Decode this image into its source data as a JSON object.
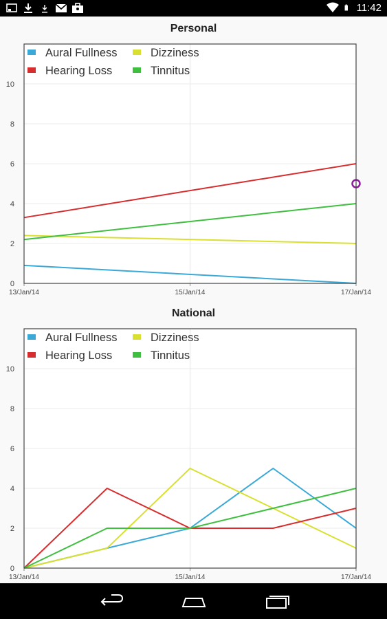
{
  "status_bar": {
    "time": "11:42",
    "icons": [
      "screenshot-icon",
      "download-icon",
      "download-icon",
      "gmail-icon",
      "briefcase-icon",
      "wifi-icon",
      "battery-icon"
    ]
  },
  "legend_items": [
    {
      "name": "Aural Fullness",
      "color": "#3aa9d8"
    },
    {
      "name": "Dizziness",
      "color": "#d9e02f"
    },
    {
      "name": "Hearing Loss",
      "color": "#d62e2e"
    },
    {
      "name": "Tinnitus",
      "color": "#3fbf3f"
    }
  ],
  "chart_data": [
    {
      "type": "line",
      "title": "Personal",
      "x_ticks": [
        "13/Jan/14",
        "15/Jan/14",
        "17/Jan/14"
      ],
      "y_ticks": [
        "0",
        "2",
        "4",
        "6",
        "8",
        "10"
      ],
      "ylim": [
        0,
        12
      ],
      "xlim": [
        "13/Jan/14",
        "17/Jan/14"
      ],
      "grid": true,
      "legend": "top-left",
      "series": [
        {
          "name": "Aural Fullness",
          "color": "#3aa9d8",
          "points": [
            [
              "13/Jan/14",
              0.9
            ],
            [
              "17/Jan/14",
              0
            ]
          ]
        },
        {
          "name": "Dizziness",
          "color": "#d9e02f",
          "points": [
            [
              "13/Jan/14",
              2.4
            ],
            [
              "17/Jan/14",
              2.0
            ]
          ]
        },
        {
          "name": "Hearing Loss",
          "color": "#d62e2e",
          "points": [
            [
              "13/Jan/14",
              3.3
            ],
            [
              "17/Jan/14",
              6.0
            ]
          ]
        },
        {
          "name": "Tinnitus",
          "color": "#3fbf3f",
          "points": [
            [
              "13/Jan/14",
              2.2
            ],
            [
              "17/Jan/14",
              4.0
            ]
          ]
        }
      ],
      "marker": {
        "date": "17/Jan/14",
        "value": 5.0,
        "color": "#8e1a9e"
      }
    },
    {
      "type": "line",
      "title": "National",
      "x_ticks": [
        "13/Jan/14",
        "15/Jan/14",
        "17/Jan/14"
      ],
      "y_ticks": [
        "0",
        "2",
        "4",
        "6",
        "8",
        "10"
      ],
      "ylim": [
        0,
        12
      ],
      "xlim": [
        "13/Jan/14",
        "17/Jan/14"
      ],
      "grid": true,
      "legend": "top-left",
      "series": [
        {
          "name": "Aural Fullness",
          "color": "#3aa9d8",
          "points": [
            [
              "13/Jan/14",
              0
            ],
            [
              "14/Jan/14",
              1
            ],
            [
              "15/Jan/14",
              2
            ],
            [
              "16/Jan/14",
              5
            ],
            [
              "17/Jan/14",
              2
            ]
          ]
        },
        {
          "name": "Dizziness",
          "color": "#d9e02f",
          "points": [
            [
              "13/Jan/14",
              0
            ],
            [
              "14/Jan/14",
              1
            ],
            [
              "15/Jan/14",
              5
            ],
            [
              "16/Jan/14",
              3
            ],
            [
              "17/Jan/14",
              1
            ]
          ]
        },
        {
          "name": "Hearing Loss",
          "color": "#d62e2e",
          "points": [
            [
              "13/Jan/14",
              0
            ],
            [
              "14/Jan/14",
              4
            ],
            [
              "15/Jan/14",
              2
            ],
            [
              "16/Jan/14",
              2
            ],
            [
              "17/Jan/14",
              3
            ]
          ]
        },
        {
          "name": "Tinnitus",
          "color": "#3fbf3f",
          "points": [
            [
              "13/Jan/14",
              0
            ],
            [
              "14/Jan/14",
              2
            ],
            [
              "15/Jan/14",
              2
            ],
            [
              "16/Jan/14",
              3
            ],
            [
              "17/Jan/14",
              4
            ]
          ]
        }
      ]
    }
  ],
  "nav_bar": {
    "buttons": [
      "back-button",
      "home-button",
      "recents-button"
    ]
  }
}
